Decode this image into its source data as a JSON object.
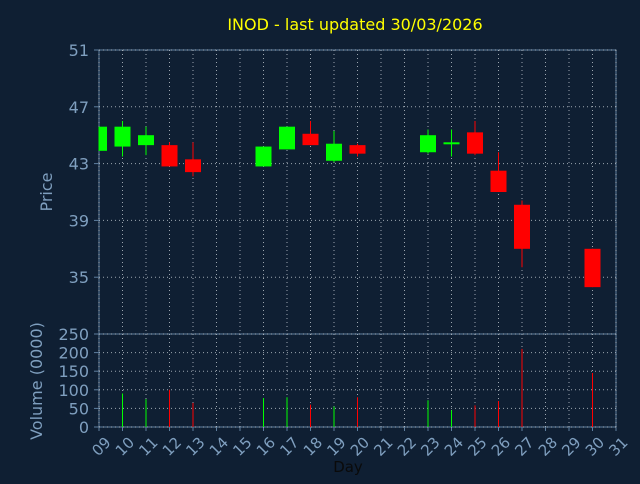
{
  "title": "INOD - last updated 30/03/2026",
  "colors": {
    "background": "#0f1f33",
    "title": "#ffff00",
    "axis_text": "#7f9fbf",
    "frame": "#5f7f9f",
    "grid": "#c0c8d0",
    "up": "#00ff00",
    "down": "#ff0000",
    "plot_bg": "#0f1f33"
  },
  "chart_data": [
    {
      "type": "candlestick",
      "ylabel": "Price",
      "ylim": [
        31,
        51
      ],
      "yticks": [
        35,
        39,
        43,
        47,
        51
      ],
      "grid": true,
      "x": [
        "09",
        "10",
        "11",
        "12",
        "13",
        "16",
        "17",
        "18",
        "19",
        "20",
        "23",
        "24",
        "25",
        "26",
        "27",
        "30"
      ],
      "open": [
        43.9,
        44.2,
        44.3,
        44.3,
        43.3,
        42.8,
        44.0,
        45.1,
        43.2,
        44.3,
        43.8,
        44.5,
        45.2,
        42.5,
        40.1,
        37.0
      ],
      "close": [
        45.6,
        45.6,
        45.0,
        42.8,
        42.4,
        44.2,
        45.6,
        44.3,
        44.4,
        43.7,
        45.0,
        44.5,
        43.7,
        41.0,
        37.0,
        34.3
      ],
      "high": [
        45.6,
        46.0,
        45.6,
        44.5,
        44.5,
        44.2,
        45.6,
        46.0,
        45.3,
        44.4,
        45.4,
        45.4,
        46.0,
        43.8,
        40.4,
        37.0
      ],
      "low": [
        43.9,
        43.5,
        43.6,
        42.8,
        42.1,
        42.8,
        44.0,
        44.3,
        43.1,
        43.5,
        43.7,
        43.5,
        43.6,
        41.0,
        35.7,
        34.3
      ]
    },
    {
      "type": "bar",
      "ylabel": "Volume (0000)",
      "xlabel": "Day",
      "ylim": [
        0,
        250
      ],
      "yticks": [
        0,
        50,
        100,
        150,
        200,
        250
      ],
      "grid": true,
      "x_ticks": [
        "09",
        "10",
        "11",
        "12",
        "13",
        "14",
        "15",
        "16",
        "17",
        "18",
        "19",
        "20",
        "21",
        "22",
        "23",
        "24",
        "25",
        "26",
        "27",
        "28",
        "29",
        "30",
        "31"
      ],
      "x": [
        "09",
        "10",
        "11",
        "12",
        "13",
        "16",
        "17",
        "18",
        "19",
        "20",
        "23",
        "24",
        "25",
        "26",
        "27",
        "30"
      ],
      "values": [
        0,
        90,
        75,
        100,
        65,
        78,
        80,
        60,
        55,
        80,
        72,
        45,
        58,
        70,
        210,
        145
      ]
    }
  ]
}
